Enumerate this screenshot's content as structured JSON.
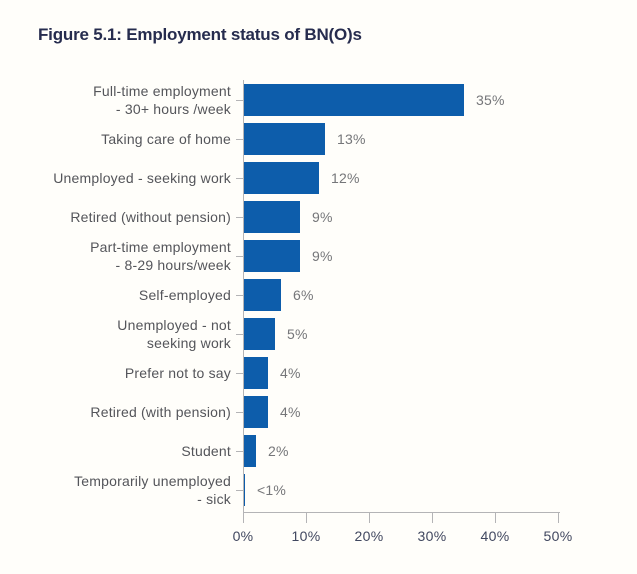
{
  "title": "Figure 5.1: Employment status of BN(O)s",
  "chart_data": {
    "type": "bar",
    "orientation": "horizontal",
    "title": "Figure 5.1: Employment status of BN(O)s",
    "categories": [
      "Full-time employment - 30+ hours /week",
      "Taking care of home",
      "Unemployed - seeking work",
      "Retired (without pension)",
      "Part-time employment - 8-29 hours/week",
      "Self-employed",
      "Unemployed - not seeking work",
      "Prefer not to say",
      "Retired (with pension)",
      "Student",
      "Temporarily unemployed - sick"
    ],
    "category_lines": [
      [
        "Full-time employment",
        "- 30+ hours /week"
      ],
      [
        "Taking care of home"
      ],
      [
        "Unemployed - seeking work"
      ],
      [
        "Retired (without pension)"
      ],
      [
        "Part-time employment",
        "- 8-29 hours/week"
      ],
      [
        "Self-employed"
      ],
      [
        "Unemployed - not",
        "seeking work"
      ],
      [
        "Prefer not to say"
      ],
      [
        "Retired (with pension)"
      ],
      [
        "Student"
      ],
      [
        "Temporarily unemployed",
        "- sick"
      ]
    ],
    "values": [
      35,
      13,
      12,
      9,
      9,
      6,
      5,
      4,
      4,
      2,
      0.3
    ],
    "value_labels": [
      "35%",
      "13%",
      "12%",
      "9%",
      "9%",
      "6%",
      "5%",
      "4%",
      "4%",
      "2%",
      "<1%"
    ],
    "x_ticks": [
      "0%",
      "10%",
      "20%",
      "30%",
      "40%",
      "50%"
    ],
    "x_tick_values": [
      0,
      10,
      20,
      30,
      40,
      50
    ],
    "xlim": [
      0,
      50
    ],
    "xlabel": "",
    "ylabel": "",
    "grid": false,
    "legend": "none",
    "colors": {
      "bar": "#0d5dab",
      "title_text": "#262c4e",
      "category_text": "#54555a",
      "value_text": "#757679",
      "tick_text": "#40475f",
      "axis": "#b4b4b6",
      "background": "#fffefa"
    }
  }
}
